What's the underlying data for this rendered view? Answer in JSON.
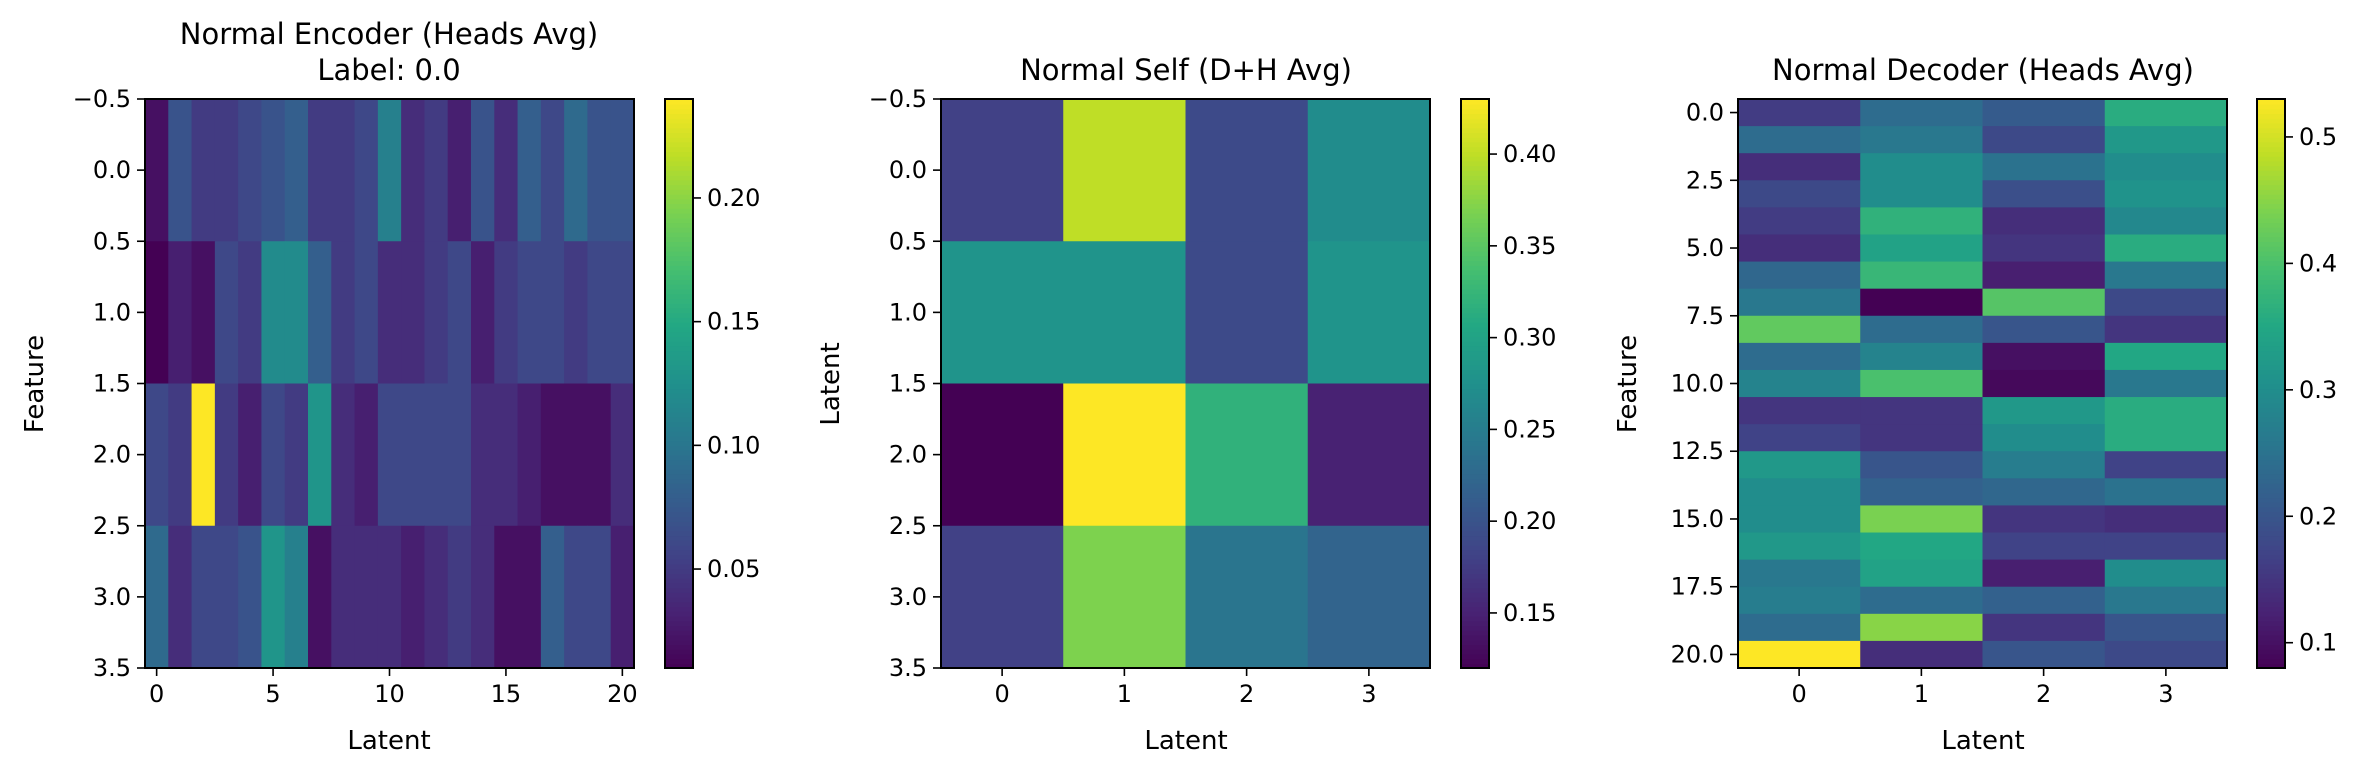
{
  "chart_data": [
    {
      "type": "heatmap",
      "title_lines": [
        "Normal Encoder (Heads Avg)",
        "Label: 0.0"
      ],
      "xlabel": "Latent",
      "ylabel": "Feature",
      "xlim": [
        -0.5,
        20.5
      ],
      "ylim": [
        3.5,
        -0.5
      ],
      "xticks": [
        0,
        5,
        10,
        15,
        20
      ],
      "yticks": [
        -0.5,
        0.0,
        0.5,
        1.0,
        1.5,
        2.0,
        2.5,
        3.0,
        3.5
      ],
      "colormap": "viridis",
      "colorbar": {
        "vmin": 0.01,
        "vmax": 0.24,
        "ticks": [
          0.05,
          0.1,
          0.15,
          0.2
        ]
      },
      "values": [
        [
          0.02,
          0.07,
          0.05,
          0.05,
          0.06,
          0.07,
          0.08,
          0.05,
          0.05,
          0.06,
          0.11,
          0.04,
          0.05,
          0.03,
          0.07,
          0.04,
          0.08,
          0.06,
          0.09,
          0.07,
          0.07
        ],
        [
          0.01,
          0.03,
          0.02,
          0.06,
          0.05,
          0.12,
          0.12,
          0.08,
          0.05,
          0.06,
          0.04,
          0.04,
          0.05,
          0.06,
          0.03,
          0.05,
          0.06,
          0.06,
          0.05,
          0.06,
          0.06
        ],
        [
          0.06,
          0.05,
          0.24,
          0.05,
          0.03,
          0.06,
          0.05,
          0.13,
          0.04,
          0.03,
          0.06,
          0.06,
          0.06,
          0.06,
          0.04,
          0.04,
          0.03,
          0.02,
          0.02,
          0.02,
          0.04
        ],
        [
          0.09,
          0.04,
          0.06,
          0.06,
          0.07,
          0.13,
          0.11,
          0.02,
          0.04,
          0.04,
          0.04,
          0.03,
          0.04,
          0.05,
          0.04,
          0.02,
          0.02,
          0.08,
          0.06,
          0.06,
          0.03
        ]
      ]
    },
    {
      "type": "heatmap",
      "title_lines": [
        "Normal Self (D+H Avg)"
      ],
      "xlabel": "Latent",
      "ylabel": "Latent",
      "xlim": [
        -0.5,
        3.5
      ],
      "ylim": [
        3.5,
        -0.5
      ],
      "xticks": [
        0,
        1,
        2,
        3
      ],
      "yticks": [
        -0.5,
        0.0,
        0.5,
        1.0,
        1.5,
        2.0,
        2.5,
        3.0,
        3.5
      ],
      "colormap": "viridis",
      "colorbar": {
        "vmin": 0.12,
        "vmax": 0.43,
        "ticks": [
          0.15,
          0.2,
          0.25,
          0.3,
          0.35,
          0.4
        ]
      },
      "values": [
        [
          0.18,
          0.4,
          0.19,
          0.27
        ],
        [
          0.28,
          0.28,
          0.19,
          0.28
        ],
        [
          0.12,
          0.43,
          0.32,
          0.15
        ],
        [
          0.18,
          0.37,
          0.24,
          0.22
        ]
      ]
    },
    {
      "type": "heatmap",
      "title_lines": [
        "Normal Decoder (Heads Avg)"
      ],
      "xlabel": "Latent",
      "ylabel": "Feature",
      "xlim": [
        -0.5,
        3.5
      ],
      "ylim": [
        20.5,
        -0.5
      ],
      "xticks": [
        0,
        1,
        2,
        3
      ],
      "yticks": [
        0.0,
        2.5,
        5.0,
        7.5,
        10.0,
        12.5,
        15.0,
        17.5,
        20.0
      ],
      "colormap": "viridis",
      "colorbar": {
        "vmin": 0.08,
        "vmax": 0.53,
        "ticks": [
          0.1,
          0.2,
          0.3,
          0.4,
          0.5
        ]
      },
      "values": [
        [
          0.16,
          0.24,
          0.21,
          0.36
        ],
        [
          0.24,
          0.26,
          0.18,
          0.32
        ],
        [
          0.14,
          0.3,
          0.25,
          0.3
        ],
        [
          0.18,
          0.3,
          0.19,
          0.31
        ],
        [
          0.16,
          0.37,
          0.14,
          0.29
        ],
        [
          0.14,
          0.34,
          0.15,
          0.36
        ],
        [
          0.23,
          0.38,
          0.12,
          0.26
        ],
        [
          0.26,
          0.08,
          0.41,
          0.18
        ],
        [
          0.42,
          0.24,
          0.2,
          0.15
        ],
        [
          0.24,
          0.28,
          0.1,
          0.35
        ],
        [
          0.28,
          0.4,
          0.09,
          0.26
        ],
        [
          0.15,
          0.15,
          0.32,
          0.36
        ],
        [
          0.17,
          0.15,
          0.3,
          0.36
        ],
        [
          0.32,
          0.2,
          0.27,
          0.17
        ],
        [
          0.3,
          0.22,
          0.23,
          0.25
        ],
        [
          0.3,
          0.44,
          0.15,
          0.14
        ],
        [
          0.32,
          0.35,
          0.17,
          0.17
        ],
        [
          0.26,
          0.34,
          0.12,
          0.3
        ],
        [
          0.27,
          0.24,
          0.22,
          0.26
        ],
        [
          0.24,
          0.45,
          0.15,
          0.2
        ],
        [
          0.53,
          0.14,
          0.2,
          0.18
        ]
      ]
    }
  ]
}
